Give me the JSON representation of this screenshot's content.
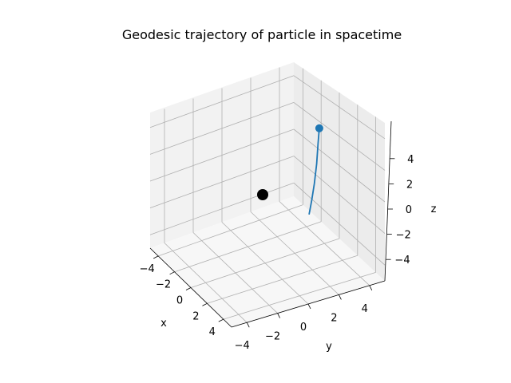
{
  "chart_data": {
    "type": "line3d",
    "title": "Geodesic trajectory of particle in spacetime",
    "xlabel": "x",
    "ylabel": "y",
    "zlabel": "z",
    "xlim": [
      -5,
      5
    ],
    "ylim": [
      -5,
      5
    ],
    "zlim": [
      -5,
      5
    ],
    "xticks": [
      "−4",
      "−2",
      "0",
      "2",
      "4"
    ],
    "yticks": [
      "−4",
      "−2",
      "0",
      "2",
      "4"
    ],
    "zticks": [
      "−4",
      "−2",
      "0",
      "2",
      "4"
    ],
    "grid": true,
    "series": [
      {
        "type": "line",
        "color": "#1f77b4",
        "points": [
          [
            0.4,
            3.0,
            -2.4
          ],
          [
            0.55,
            3.1,
            -1.3
          ],
          [
            0.7,
            3.2,
            0.0
          ],
          [
            0.8,
            3.3,
            1.5
          ],
          [
            0.88,
            3.35,
            3.0
          ],
          [
            0.95,
            3.4,
            4.2
          ]
        ]
      },
      {
        "type": "marker",
        "label_role": "particle",
        "color": "#1f77b4",
        "points": [
          [
            0.95,
            3.4,
            4.2
          ]
        ]
      },
      {
        "type": "marker",
        "label_role": "central-mass",
        "color": "#000000",
        "points": [
          [
            0,
            0,
            0
          ]
        ]
      }
    ]
  }
}
